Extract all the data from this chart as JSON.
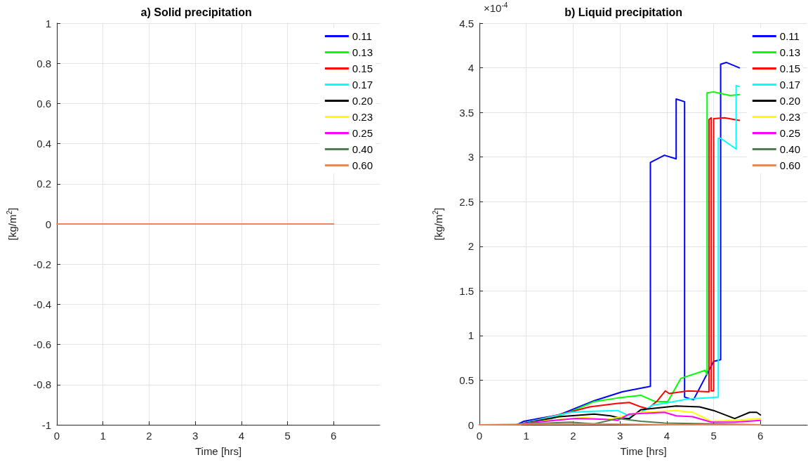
{
  "chart_data": [
    {
      "type": "line",
      "title": "a) Solid precipitation",
      "xlabel": "Time [hrs]",
      "ylabel": "[kg/m$^{2}$]",
      "xlim": [
        0,
        7
      ],
      "xticks": [
        0,
        1,
        2,
        3,
        4,
        5,
        6
      ],
      "ylim": [
        -1,
        1
      ],
      "yticks": [
        -1,
        -0.8,
        -0.6,
        -0.4,
        -0.2,
        0,
        0.2,
        0.4,
        0.6,
        0.8,
        1
      ],
      "grid": true,
      "legend": "top right",
      "series": [
        {
          "name": "0.11",
          "color": "#0000ff"
        },
        {
          "name": "0.13",
          "color": "#00ff00"
        },
        {
          "name": "0.15",
          "color": "#ff0000"
        },
        {
          "name": "0.17",
          "color": "#00ffff"
        },
        {
          "name": "0.20",
          "color": "#000000"
        },
        {
          "name": "0.23",
          "color": "#ffff00"
        },
        {
          "name": "0.25",
          "color": "#ff00ff"
        },
        {
          "name": "0.40",
          "color": "#4f7f4f"
        },
        {
          "name": "0.60",
          "color": "#e8875a",
          "x": [
            0,
            6
          ],
          "values": [
            0,
            0
          ]
        }
      ]
    },
    {
      "type": "line",
      "title": "b) Liquid precipitation",
      "xlabel": "Time [hrs]",
      "ylabel": "[kg/m$^{2}$]",
      "annotations": [
        "×10$^{-4}$"
      ],
      "xlim": [
        0,
        7
      ],
      "xticks": [
        0,
        1,
        2,
        3,
        4,
        5,
        6
      ],
      "ylim": [
        0,
        4.5
      ],
      "yticks": [
        0,
        0.5,
        1,
        1.5,
        2,
        2.5,
        3,
        3.5,
        4,
        4.5
      ],
      "grid": true,
      "legend": "top right",
      "series": [
        {
          "name": "0.11",
          "color": "#0000ff",
          "x": [
            0,
            0.8,
            0.95,
            1.7,
            2.45,
            3.05,
            3.65,
            3.65,
            3.95,
            4.2,
            4.2,
            4.38,
            4.38,
            4.57,
            5.0,
            5.15,
            5.15,
            5.27,
            5.55
          ],
          "values": [
            0,
            0,
            0.04,
            0.11,
            0.27,
            0.37,
            0.43,
            2.94,
            3.02,
            2.98,
            3.65,
            3.62,
            0.31,
            0.28,
            0.71,
            0.73,
            4.04,
            4.06,
            4.0
          ]
        },
        {
          "name": "0.13",
          "color": "#00ff00",
          "x": [
            0,
            0.8,
            1.45,
            2.05,
            2.45,
            2.95,
            3.45,
            3.75,
            4.02,
            4.3,
            4.82,
            4.86,
            4.86,
            5.0,
            5.35,
            5.55
          ],
          "values": [
            0,
            0,
            0.05,
            0.17,
            0.26,
            0.3,
            0.33,
            0.26,
            0.26,
            0.52,
            0.61,
            0.56,
            3.72,
            3.73,
            3.69,
            3.7
          ]
        },
        {
          "name": "0.15",
          "color": "#ff0000",
          "x": [
            0,
            0.8,
            1.2,
            2.05,
            2.35,
            2.95,
            3.2,
            3.45,
            3.6,
            3.8,
            3.97,
            4.05,
            4.45,
            4.9,
            4.9,
            4.95,
            4.95,
            5.0,
            5.0,
            5.23,
            5.55
          ],
          "values": [
            0,
            0,
            0.05,
            0.16,
            0.2,
            0.24,
            0.25,
            0.2,
            0.18,
            0.27,
            0.38,
            0.35,
            0.38,
            0.37,
            3.42,
            3.44,
            0.38,
            0.38,
            3.43,
            3.44,
            3.41
          ]
        },
        {
          "name": "0.17",
          "color": "#00ffff",
          "x": [
            0,
            0.8,
            1.95,
            2.3,
            2.95,
            3.2,
            3.45,
            3.7,
            3.95,
            4.45,
            5.1,
            5.1,
            5.15,
            5.48,
            5.48,
            5.55
          ],
          "values": [
            0,
            0,
            0.14,
            0.15,
            0.16,
            0.1,
            0.14,
            0.22,
            0.24,
            0.29,
            0.31,
            3.21,
            3.21,
            3.09,
            3.8,
            3.79
          ]
        },
        {
          "name": "0.20",
          "color": "#000000",
          "x": [
            0,
            0.8,
            1.7,
            2.45,
            2.8,
            3.05,
            3.2,
            3.45,
            4.2,
            4.7,
            5.0,
            5.45,
            5.77,
            5.92,
            6.0
          ],
          "values": [
            0,
            0,
            0.09,
            0.12,
            0.1,
            0.07,
            0.07,
            0.17,
            0.21,
            0.2,
            0.16,
            0.07,
            0.14,
            0.14,
            0.11
          ]
        },
        {
          "name": "0.23",
          "color": "#ffff00",
          "x": [
            0,
            0.8,
            1.45,
            2.25,
            2.75,
            3.45,
            4.2,
            4.55,
            4.95,
            5.45,
            6.0
          ],
          "values": [
            0,
            0,
            0.05,
            0.08,
            0.06,
            0.14,
            0.16,
            0.14,
            0.04,
            0.05,
            0.07
          ]
        },
        {
          "name": "0.25",
          "color": "#ff00ff",
          "x": [
            0,
            0.8,
            1.2,
            2.05,
            2.7,
            2.95,
            3.2,
            3.95,
            4.2,
            4.55,
            4.95,
            5.45,
            6.0
          ],
          "values": [
            0,
            0,
            0.03,
            0.07,
            0.06,
            0.05,
            0.12,
            0.14,
            0.1,
            0.09,
            0.03,
            0.03,
            0.05
          ]
        },
        {
          "name": "0.40",
          "color": "#4f7f4f",
          "x": [
            0,
            0.8,
            0.95,
            1.95,
            2.45,
            2.95,
            3.45,
            3.95,
            4.95,
            6.0
          ],
          "values": [
            0,
            0,
            0.01,
            0.03,
            0.01,
            0.07,
            0.04,
            0.02,
            0.01,
            0
          ]
        },
        {
          "name": "0.60",
          "color": "#e8875a",
          "x": [
            0,
            1.5,
            2.5,
            4.0,
            6.0
          ],
          "values": [
            0,
            0.01,
            0.01,
            0,
            0
          ]
        }
      ]
    }
  ]
}
